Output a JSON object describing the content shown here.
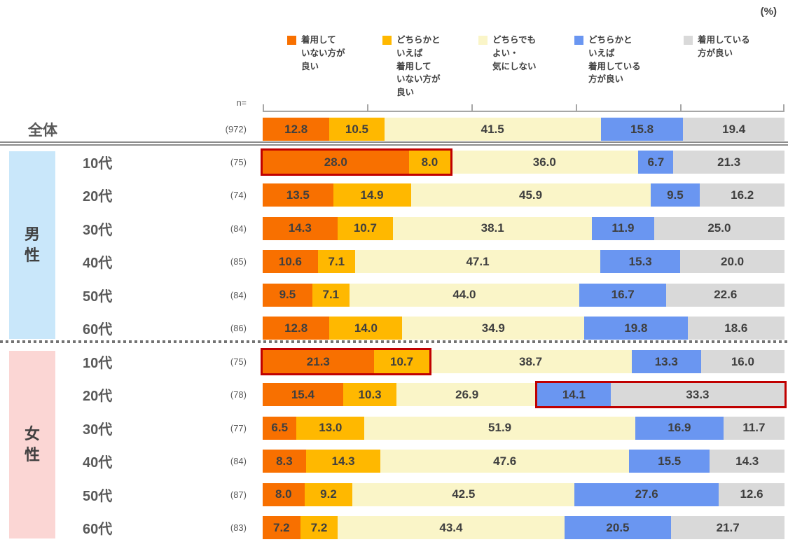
{
  "unit_label": "(%)",
  "n_header": "n=",
  "highlight_color": "#C00000",
  "series": [
    {
      "name": "着用していない方が良い",
      "legend_label": "着用して\nいない方が\n良い",
      "color": "#F87000"
    },
    {
      "name": "どちらかといえば着用していない方が良い",
      "legend_label": "どちらかと\nいえば\n着用して\nいない方が\n良い",
      "color": "#FFB800"
    },
    {
      "name": "どちらでもよい・気にしない",
      "legend_label": "どちらでも\nよい・\n気にしない",
      "color": "#FAF5C8"
    },
    {
      "name": "どちらかといえば着用している方が良い",
      "legend_label": "どちらかと\nいえば\n着用している\n方が良い",
      "color": "#6A96F1"
    },
    {
      "name": "着用している方が良い",
      "legend_label": "着用している\n方が良い",
      "color": "#D9D9D9"
    }
  ],
  "groups": [
    {
      "label": "男\n性",
      "color": "#C9E7FA"
    },
    {
      "label": "女\n性",
      "color": "#FBD6D4"
    }
  ],
  "rows": [
    {
      "label": "全体",
      "n": "(972)",
      "group": null,
      "highlight": null
    },
    {
      "label": "10代",
      "n": "(75)",
      "group": 0,
      "highlight": [
        0,
        1
      ]
    },
    {
      "label": "20代",
      "n": "(74)",
      "group": 0,
      "highlight": null
    },
    {
      "label": "30代",
      "n": "(84)",
      "group": 0,
      "highlight": null
    },
    {
      "label": "40代",
      "n": "(85)",
      "group": 0,
      "highlight": null
    },
    {
      "label": "50代",
      "n": "(84)",
      "group": 0,
      "highlight": null
    },
    {
      "label": "60代",
      "n": "(86)",
      "group": 0,
      "highlight": null
    },
    {
      "label": "10代",
      "n": "(75)",
      "group": 1,
      "highlight": [
        0,
        1
      ]
    },
    {
      "label": "20代",
      "n": "(78)",
      "group": 1,
      "highlight": [
        3,
        4
      ]
    },
    {
      "label": "30代",
      "n": "(77)",
      "group": 1,
      "highlight": null
    },
    {
      "label": "40代",
      "n": "(84)",
      "group": 1,
      "highlight": null
    },
    {
      "label": "50代",
      "n": "(87)",
      "group": 1,
      "highlight": null
    },
    {
      "label": "60代",
      "n": "(83)",
      "group": 1,
      "highlight": null
    }
  ],
  "chart_data": {
    "type": "bar",
    "stacked": true,
    "orientation": "horizontal",
    "unit": "%",
    "xlim": [
      0,
      100
    ],
    "legend_position": "top",
    "grid": false,
    "categories": [
      "全体",
      "男性 10代",
      "男性 20代",
      "男性 30代",
      "男性 40代",
      "男性 50代",
      "男性 60代",
      "女性 10代",
      "女性 20代",
      "女性 30代",
      "女性 40代",
      "女性 50代",
      "女性 60代"
    ],
    "n": [
      972,
      75,
      74,
      84,
      85,
      84,
      86,
      75,
      78,
      77,
      84,
      87,
      83
    ],
    "series": [
      {
        "name": "着用していない方が良い",
        "values": [
          12.8,
          28.0,
          13.5,
          14.3,
          10.6,
          9.5,
          12.8,
          21.3,
          15.4,
          6.5,
          8.3,
          8.0,
          7.2
        ]
      },
      {
        "name": "どちらかといえば着用していない方が良い",
        "values": [
          10.5,
          8.0,
          14.9,
          10.7,
          7.1,
          7.1,
          14.0,
          10.7,
          10.3,
          13.0,
          14.3,
          9.2,
          7.2
        ]
      },
      {
        "name": "どちらでもよい・気にしない",
        "values": [
          41.5,
          36.0,
          45.9,
          38.1,
          47.1,
          44.0,
          34.9,
          38.7,
          26.9,
          51.9,
          47.6,
          42.5,
          43.4
        ]
      },
      {
        "name": "どちらかといえば着用している方が良い",
        "values": [
          15.8,
          6.7,
          9.5,
          11.9,
          15.3,
          16.7,
          19.8,
          13.3,
          14.1,
          16.9,
          15.5,
          27.6,
          20.5
        ]
      },
      {
        "name": "着用している方が良い",
        "values": [
          19.4,
          21.3,
          16.2,
          25.0,
          20.0,
          22.6,
          18.6,
          16.0,
          33.3,
          11.7,
          14.3,
          12.6,
          21.7
        ]
      }
    ],
    "annotations": [
      "男性10代の「着用していない方が良い」+「どちらかといえば着用していない方が良い」(28.0+8.0)を赤枠で強調",
      "女性10代の「着用していない方が良い」+「どちらかといえば着用していない方が良い」(21.3+10.7)を赤枠で強調",
      "女性20代の「どちらかといえば着用している方が良い」+「着用している方が良い」(14.1+33.3)を赤枠で強調"
    ]
  }
}
